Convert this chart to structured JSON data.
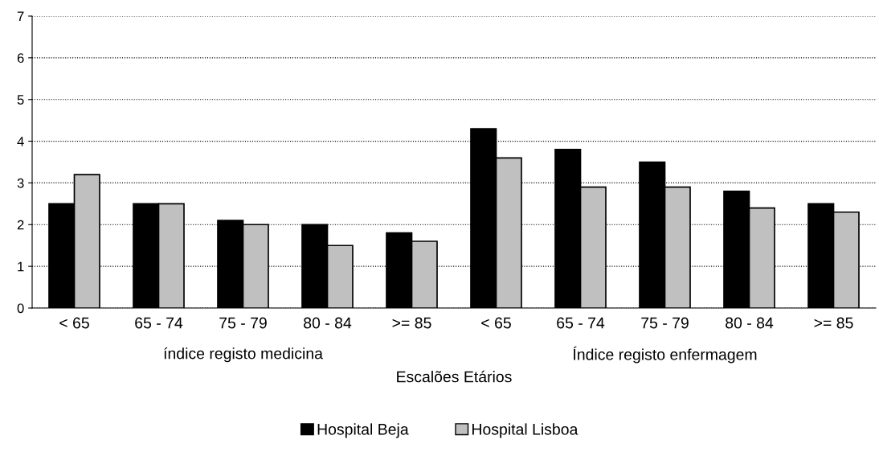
{
  "chart_data": {
    "type": "bar",
    "xlabel": "Escalões Etários",
    "categories": [
      "< 65",
      "65 - 74",
      "75 - 79",
      "80 - 84",
      ">= 85",
      "< 65",
      "65 - 74",
      "75 - 79",
      "80 - 84",
      ">= 85"
    ],
    "annotations": [
      "índice registo medicina",
      "Índice registo enfermagem"
    ],
    "series": [
      {
        "name": "Hospital Beja",
        "color": "#000000",
        "values": [
          2.5,
          2.5,
          2.1,
          2.0,
          1.8,
          4.3,
          3.8,
          3.5,
          2.8,
          2.5
        ]
      },
      {
        "name": "Hospital Lisboa",
        "color": "#c0c0c0",
        "values": [
          3.2,
          2.5,
          2.0,
          1.5,
          1.6,
          3.6,
          2.9,
          2.9,
          2.4,
          2.3
        ]
      }
    ],
    "ylim": [
      0,
      7
    ],
    "yticks": [
      0,
      1,
      2,
      3,
      4,
      5,
      6,
      7
    ],
    "grid": "y",
    "legend": "bottom"
  }
}
